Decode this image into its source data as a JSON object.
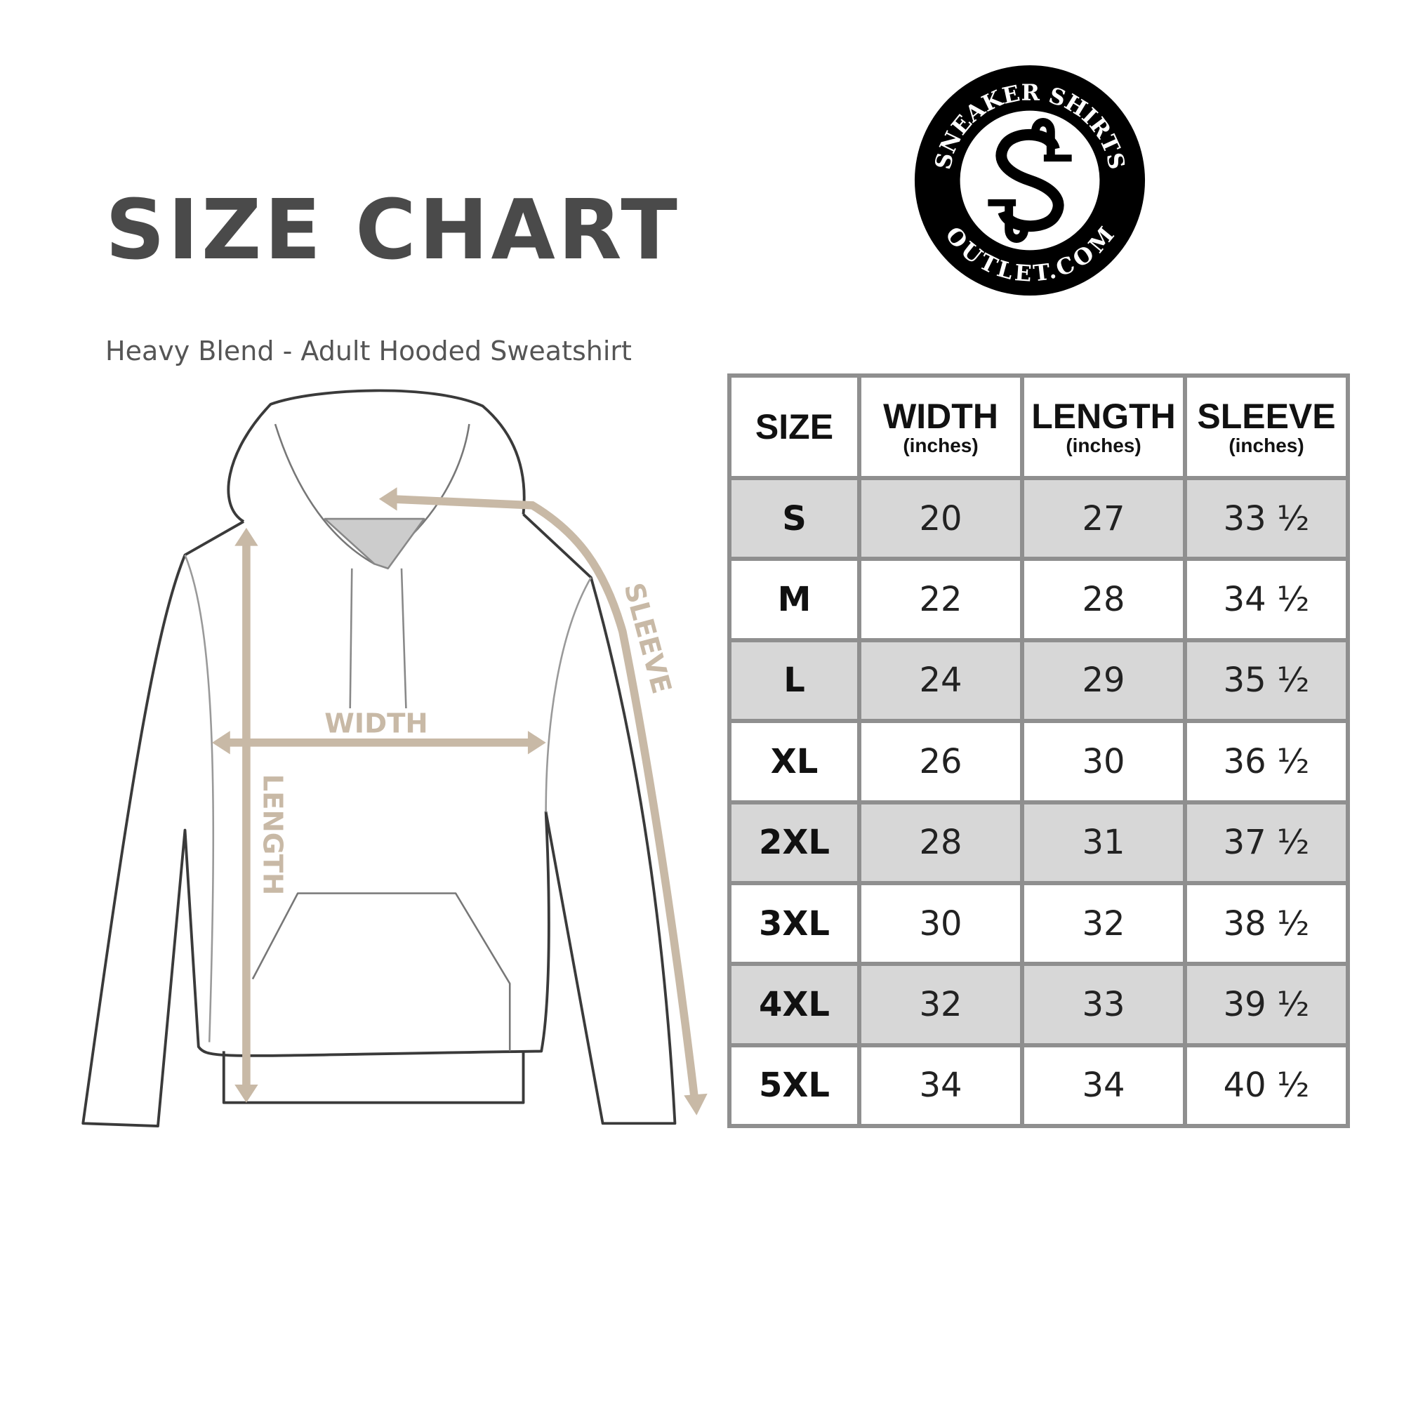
{
  "header": {
    "title": "SIZE CHART",
    "subtitle": "Heavy Blend - Adult Hooded Sweatshirt"
  },
  "logo": {
    "text_top": "SNEAKER SHIRTS",
    "text_bottom": "OUTLET.COM",
    "monogram": "SS"
  },
  "diagram": {
    "labels": {
      "width": "WIDTH",
      "length": "LENGTH",
      "sleeve": "SLEEVE"
    },
    "arrow_color": "#c8b9a6"
  },
  "table": {
    "columns": [
      {
        "label": "SIZE",
        "unit": ""
      },
      {
        "label": "WIDTH",
        "unit": "(inches)"
      },
      {
        "label": "LENGTH",
        "unit": "(inches)"
      },
      {
        "label": "SLEEVE",
        "unit": "(inches)"
      }
    ],
    "rows": [
      [
        "S",
        "20",
        "27",
        "33 ½"
      ],
      [
        "M",
        "22",
        "28",
        "34 ½"
      ],
      [
        "L",
        "24",
        "29",
        "35 ½"
      ],
      [
        "XL",
        "26",
        "30",
        "36 ½"
      ],
      [
        "2XL",
        "28",
        "31",
        "37 ½"
      ],
      [
        "3XL",
        "30",
        "32",
        "38 ½"
      ],
      [
        "4XL",
        "32",
        "33",
        "39 ½"
      ],
      [
        "5XL",
        "34",
        "34",
        "40 ½"
      ]
    ],
    "shade_color": "#d7d7d7",
    "border_color": "#8f8f8f"
  }
}
